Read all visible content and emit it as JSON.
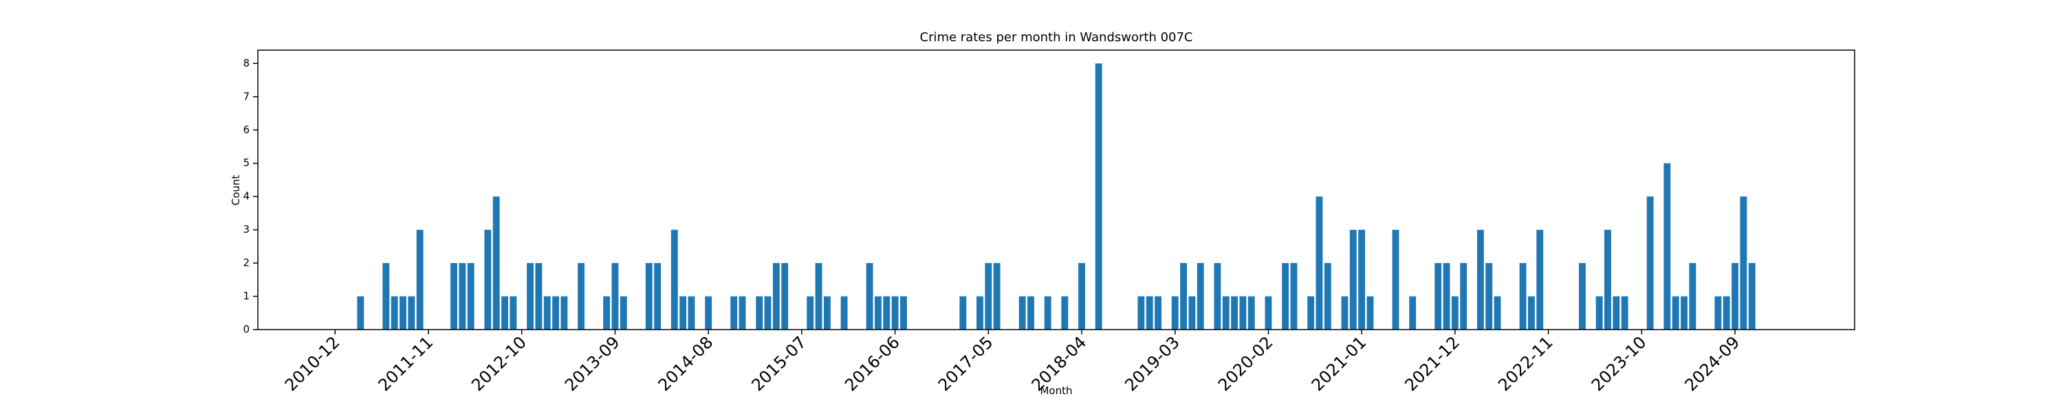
{
  "chart_data": {
    "type": "bar",
    "title": "Crime rates per month in Wandsworth 007C",
    "xlabel": "Month",
    "ylabel": "Count",
    "color": "#1f77b4",
    "categories": [
      "2010-12",
      null,
      null,
      null,
      null,
      null,
      null,
      null,
      null,
      null,
      null,
      "2011-11",
      null,
      null,
      null,
      null,
      null,
      null,
      null,
      null,
      null,
      null,
      "2012-10",
      null,
      null,
      null,
      null,
      null,
      null,
      null,
      null,
      null,
      null,
      "2013-09",
      null,
      null,
      null,
      null,
      null,
      null,
      null,
      null,
      null,
      null,
      "2014-08",
      null,
      null,
      null,
      null,
      null,
      null,
      null,
      null,
      null,
      null,
      "2015-07",
      null,
      null,
      null,
      null,
      null,
      null,
      null,
      null,
      null,
      null,
      "2016-06",
      null,
      null,
      null,
      null,
      null,
      null,
      null,
      null,
      null,
      null,
      "2017-05",
      null,
      null,
      null,
      null,
      null,
      null,
      null,
      null,
      null,
      null,
      "2018-04",
      null,
      null,
      null,
      null,
      null,
      null,
      null,
      null,
      null,
      null,
      "2019-03",
      null,
      null,
      null,
      null,
      null,
      null,
      null,
      null,
      null,
      null,
      "2020-02",
      null,
      null,
      null,
      null,
      null,
      null,
      null,
      null,
      null,
      null,
      "2021-01",
      null,
      null,
      null,
      null,
      null,
      null,
      null,
      null,
      null,
      null,
      "2021-12",
      null,
      null,
      null,
      null,
      null,
      null,
      null,
      null,
      null,
      null,
      "2022-11",
      null,
      null,
      null,
      null,
      null,
      null,
      null,
      null,
      null,
      null,
      "2023-10",
      null,
      null,
      null,
      null,
      null,
      null,
      null,
      null,
      null,
      null,
      "2024-09",
      null,
      null
    ],
    "values": [
      0,
      0,
      0,
      1,
      0,
      0,
      2,
      1,
      1,
      1,
      3,
      0,
      0,
      0,
      2,
      2,
      2,
      0,
      3,
      4,
      1,
      1,
      0,
      2,
      2,
      1,
      1,
      1,
      0,
      2,
      0,
      0,
      1,
      2,
      1,
      0,
      0,
      2,
      2,
      0,
      3,
      1,
      1,
      0,
      1,
      0,
      0,
      1,
      1,
      0,
      1,
      1,
      2,
      2,
      0,
      0,
      1,
      2,
      1,
      0,
      1,
      0,
      0,
      2,
      1,
      1,
      1,
      1,
      0,
      0,
      0,
      0,
      0,
      0,
      1,
      0,
      1,
      2,
      2,
      0,
      0,
      1,
      1,
      0,
      1,
      0,
      1,
      0,
      2,
      0,
      8,
      0,
      0,
      0,
      0,
      1,
      1,
      1,
      0,
      1,
      2,
      1,
      2,
      0,
      2,
      1,
      1,
      1,
      1,
      0,
      1,
      0,
      2,
      2,
      0,
      1,
      4,
      2,
      0,
      1,
      3,
      3,
      1,
      0,
      0,
      3,
      0,
      1,
      0,
      0,
      2,
      2,
      1,
      2,
      0,
      3,
      2,
      1,
      0,
      0,
      2,
      1,
      3,
      0,
      0,
      0,
      0,
      2,
      0,
      1,
      3,
      1,
      1,
      0,
      0,
      4,
      0,
      5,
      1,
      1,
      2,
      0,
      0,
      1,
      1,
      2,
      4,
      2
    ],
    "ylim": [
      0,
      8.4
    ],
    "yticks": [
      0,
      1,
      2,
      3,
      4,
      5,
      6,
      7,
      8
    ]
  }
}
